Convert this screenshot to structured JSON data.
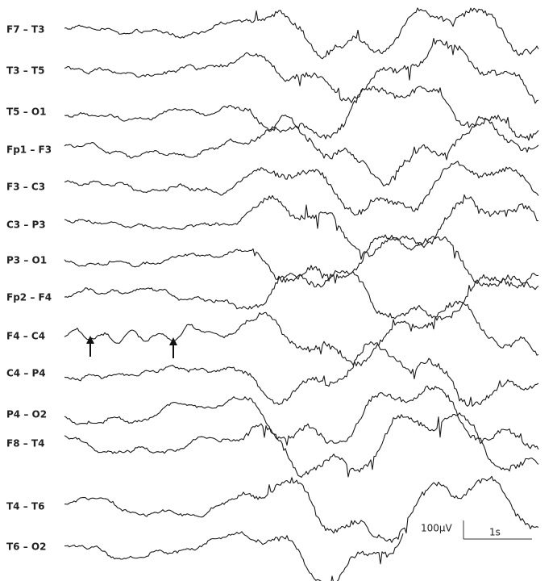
{
  "channels": [
    "F7 – T3",
    "T3 – T5",
    "T5 – O1",
    "Fp1 – F3",
    "F3 – C3",
    "C3 – P3",
    "P3 – O1",
    "Fp2 – F4",
    "F4 – C4",
    "C4 – P4",
    "P4 – O2",
    "F8 – T4",
    "T4 – T6",
    "T6 – O2"
  ],
  "scale_bar": {
    "amplitude": "100μV",
    "time": "1s"
  }
}
